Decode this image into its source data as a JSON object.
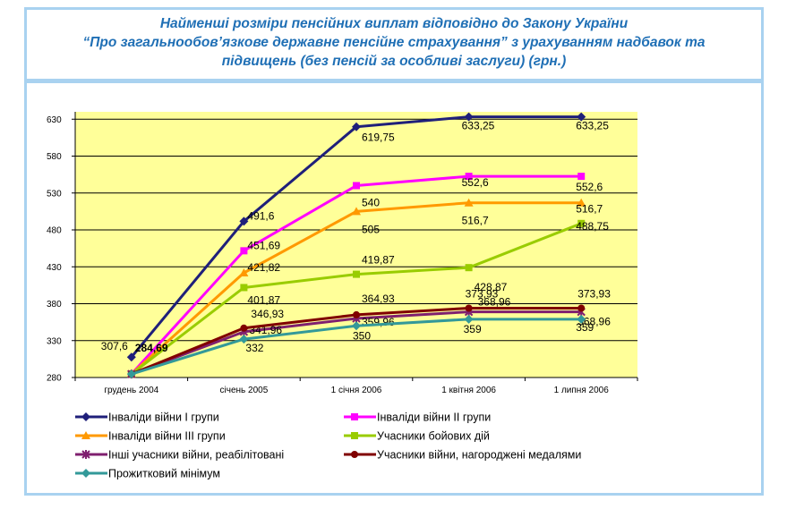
{
  "title_lines": [
    "Найменші розміри пенсійних виплат відповідно до Закону України",
    "“Про загальнообов’язкове державне пенсійне страхування” з урахуванням надбавок та",
    "підвищень (без пенсій за особливі заслуги) (грн.)"
  ],
  "colors": {
    "plot_bg": "#ffff99",
    "frame": "#a9d2f0",
    "title": "#1f6fb5"
  },
  "chart_data": {
    "type": "line",
    "title": "Найменші розміри пенсійних виплат відповідно до Закону України “Про загальнообов’язкове державне пенсійне страхування” з урахуванням надбавок та підвищень (без пенсій за особливі заслуги) (грн.)",
    "categories": [
      "грудень 2004",
      "січень 2005",
      "1 січня 2006",
      "1 квітня 2006",
      "1 липня 2006"
    ],
    "yticks": [
      "280",
      "330",
      "380",
      "430",
      "480",
      "530",
      "580",
      "630"
    ],
    "ylim": [
      280,
      640
    ],
    "grid": "horizontal",
    "legend_position": "bottom",
    "series": [
      {
        "name": "Інваліди війни І групи",
        "color": "#1f1f7a",
        "marker": "diamond",
        "values": [
          307.6,
          491.6,
          619.75,
          633.25,
          633.25
        ],
        "labels": [
          "307,6",
          "491,6",
          "619,75",
          "633,25",
          "633,25"
        ]
      },
      {
        "name": "Інваліди війни ІІ групи",
        "color": "#ff00ff",
        "marker": "square",
        "values": [
          284.69,
          451.69,
          540,
          552.6,
          552.6
        ],
        "labels": [
          "",
          "451,69",
          "540",
          "552,6",
          "552,6"
        ]
      },
      {
        "name": "Інваліди війни ІІІ групи",
        "color": "#ff9900",
        "marker": "triangle",
        "values": [
          284.69,
          421.82,
          505,
          516.7,
          516.7
        ],
        "labels": [
          "",
          "421,82",
          "505",
          "516,7",
          "516,7"
        ]
      },
      {
        "name": "Учасники бойових дій",
        "color": "#99cc00",
        "marker": "square",
        "values": [
          284.69,
          401.87,
          419.87,
          428.87,
          488.75
        ],
        "labels": [
          "",
          "401,87",
          "419,87",
          "428,87",
          "488,75"
        ]
      },
      {
        "name": "Інші учасники війни, реабілітовані",
        "color": "#7f1f6f",
        "marker": "star",
        "values": [
          284.69,
          341.96,
          359.96,
          368.96,
          368.96
        ],
        "labels": [
          "",
          "341,96",
          "359,96",
          "368,96",
          "368,96"
        ]
      },
      {
        "name": "Учасники війни, нагороджені медалями",
        "color": "#800000",
        "marker": "circle",
        "values": [
          284.69,
          346.93,
          364.93,
          373.93,
          373.93
        ],
        "labels": [
          "284,69",
          "346,93",
          "364,93",
          "373,93",
          "373,93"
        ]
      },
      {
        "name": "Прожитковий мінімум",
        "color": "#339999",
        "marker": "diamond",
        "values": [
          284.69,
          332,
          350,
          359,
          359
        ],
        "labels": [
          "",
          "332",
          "350",
          "359",
          "359"
        ]
      }
    ]
  }
}
